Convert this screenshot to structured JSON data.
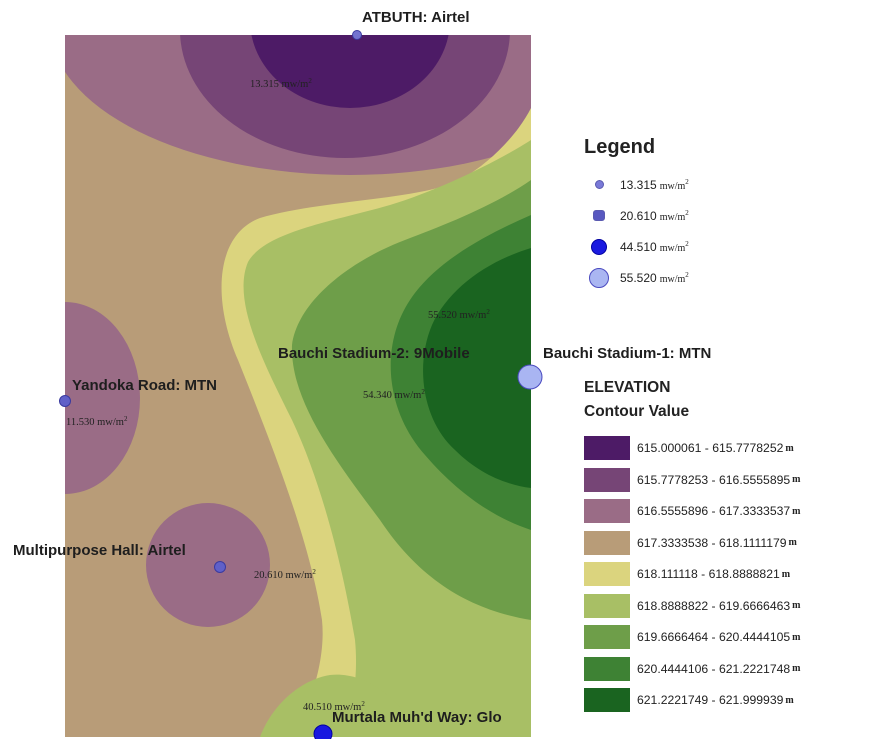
{
  "map": {
    "colors": {
      "c1": "#4d1b66",
      "c2": "#764576",
      "c3": "#9a6c86",
      "c4": "#b89c78",
      "c5": "#dbd47e",
      "c6": "#a8bf65",
      "c7": "#6e9e49",
      "c8": "#3e8234",
      "c9": "#1a6420"
    },
    "sites": [
      {
        "name": "ATBUTH: Airtel",
        "value": "13.315 mw/m",
        "sup": "2"
      },
      {
        "name": "Bauchi Stadium-2: 9Mobile",
        "value": "55.520 mw/m",
        "sup": "2"
      },
      {
        "name": "Bauchi Stadium-1: MTN",
        "value": "54.340 mw/m",
        "sup": "2"
      },
      {
        "name": "Yandoka Road: MTN",
        "value": "11.530 mw/m",
        "sup": "2"
      },
      {
        "name": "Multipurpose Hall: Airtel",
        "value": "20.610 mw/m",
        "sup": "2"
      },
      {
        "name": "Murtala Muh'd Way: Glo",
        "value": "40.510 mw/m",
        "sup": "2"
      }
    ]
  },
  "legend": {
    "title": "Legend",
    "items": [
      {
        "value": "13.315",
        "unit": "mw/m",
        "sup": "2"
      },
      {
        "value": "20.610",
        "unit": "mw/m",
        "sup": "2"
      },
      {
        "value": "44.510",
        "unit": "mw/m",
        "sup": "2"
      },
      {
        "value": "55.520",
        "unit": "mw/m",
        "sup": "2"
      }
    ]
  },
  "elevation": {
    "title": "ELEVATION",
    "subtitle": "Contour Value",
    "unit": "m",
    "classes": [
      {
        "range": "615.000061 - 615.7778252",
        "color": "#4d1b66"
      },
      {
        "range": "615.7778253 - 616.5555895",
        "color": "#764576"
      },
      {
        "range": "616.5555896 - 617.3333537",
        "color": "#9a6c86"
      },
      {
        "range": "617.3333538 - 618.1111179",
        "color": "#b89c78"
      },
      {
        "range": "618.111118 - 618.8888821",
        "color": "#dbd47e"
      },
      {
        "range": "618.8888822 - 619.6666463",
        "color": "#a8bf65"
      },
      {
        "range": "619.6666464 - 620.4444105",
        "color": "#6e9e49"
      },
      {
        "range": "620.4444106 - 621.2221748",
        "color": "#3e8234"
      },
      {
        "range": "621.2221749 - 621.999939",
        "color": "#1a6420"
      }
    ]
  }
}
